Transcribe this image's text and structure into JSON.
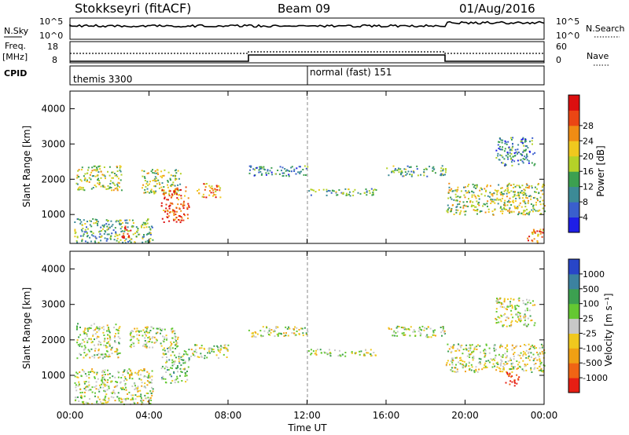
{
  "header": {
    "title": "Stokkseyri (fitACF)",
    "beam": "Beam 09",
    "date": "01/Aug/2016"
  },
  "top_panels": {
    "nsky_label": "N.Sky",
    "nsky_ticks": [
      "10^5",
      "10^0"
    ],
    "nsearch_label": "N.Search",
    "freq_label": "Freq.",
    "freq_unit": "[MHz]",
    "freq_ticks": [
      "18",
      "8"
    ],
    "nave_label": "Nave",
    "nave_ticks": [
      "60",
      "0"
    ],
    "cpid_label": "CPID",
    "cpid_modes": [
      "themis 3300",
      "normal (fast) 151"
    ]
  },
  "chart_data": [
    {
      "type": "heatmap",
      "name": "power-panel",
      "ylabel": "Slant Range [km]",
      "yticks": [
        "1000",
        "2000",
        "3000",
        "4000"
      ],
      "ylim": [
        180,
        4500
      ],
      "xlim": [
        0,
        24
      ],
      "colorbar": {
        "label": "Power [dB]",
        "ticks": [
          "4",
          "8",
          "12",
          "16",
          "20",
          "24",
          "28"
        ],
        "colors": [
          "#1e1ee6",
          "#3a5fcd",
          "#3c8a96",
          "#3ca050",
          "#b4d228",
          "#f0c81e",
          "#f08c14",
          "#eb4614",
          "#dc0f0f"
        ]
      },
      "echo_regions": [
        {
          "t0": 0.2,
          "t1": 4.2,
          "r0": 200,
          "r1": 900,
          "level": 3
        },
        {
          "t0": 2.6,
          "t1": 3.1,
          "r0": 300,
          "r1": 700,
          "level": 8
        },
        {
          "t0": 0.3,
          "t1": 2.6,
          "r0": 1700,
          "r1": 2400,
          "level": 4
        },
        {
          "t0": 3.6,
          "t1": 5.6,
          "r0": 1600,
          "r1": 2300,
          "level": 4
        },
        {
          "t0": 4.6,
          "t1": 6.0,
          "r0": 800,
          "r1": 1800,
          "level": 7
        },
        {
          "t0": 6.4,
          "t1": 7.6,
          "r0": 1500,
          "r1": 1900,
          "level": 6
        },
        {
          "t0": 9.0,
          "t1": 12.0,
          "r0": 2100,
          "r1": 2400,
          "level": 2
        },
        {
          "t0": 12.0,
          "t1": 15.5,
          "r0": 1550,
          "r1": 1750,
          "level": 3
        },
        {
          "t0": 16.0,
          "t1": 19.0,
          "r0": 2100,
          "r1": 2400,
          "level": 3
        },
        {
          "t0": 19.0,
          "t1": 24.0,
          "r0": 1000,
          "r1": 1900,
          "level": 4
        },
        {
          "t0": 21.5,
          "t1": 23.5,
          "r0": 2400,
          "r1": 3200,
          "level": 2
        },
        {
          "t0": 23.0,
          "t1": 24.0,
          "r0": 200,
          "r1": 600,
          "level": 6
        }
      ]
    },
    {
      "type": "heatmap",
      "name": "velocity-panel",
      "ylabel": "Slant Range [km]",
      "yticks": [
        "1000",
        "2000",
        "3000",
        "4000"
      ],
      "ylim": [
        180,
        4500
      ],
      "xlim": [
        0,
        24
      ],
      "xticks": [
        "00:00",
        "04:00",
        "08:00",
        "12:00",
        "16:00",
        "20:00",
        "00:00"
      ],
      "xlabel": "Time UT",
      "colorbar": {
        "label": "Velocity [m s⁻¹]",
        "ticks": [
          "1000",
          "500",
          "100",
          "25",
          "-25",
          "-100",
          "-500",
          "-1000"
        ],
        "colors": [
          "#2846c8",
          "#3c82a0",
          "#3ca050",
          "#64c832",
          "#c8c8c8",
          "#f0c81e",
          "#f0a014",
          "#f06414",
          "#e61e14"
        ]
      },
      "echo_regions": [
        {
          "t0": 0.2,
          "t1": 4.2,
          "r0": 200,
          "r1": 1200,
          "level": 4
        },
        {
          "t0": 0.3,
          "t1": 2.5,
          "r0": 1500,
          "r1": 2500,
          "level": 4
        },
        {
          "t0": 3.0,
          "t1": 5.5,
          "r0": 1800,
          "r1": 2400,
          "level": 4
        },
        {
          "t0": 4.6,
          "t1": 6.0,
          "r0": 800,
          "r1": 1800,
          "level": 3
        },
        {
          "t0": 6.0,
          "t1": 8.0,
          "r0": 1500,
          "r1": 1900,
          "level": 4
        },
        {
          "t0": 9.0,
          "t1": 12.0,
          "r0": 2100,
          "r1": 2400,
          "level": 4
        },
        {
          "t0": 12.0,
          "t1": 15.5,
          "r0": 1550,
          "r1": 1750,
          "level": 4
        },
        {
          "t0": 16.0,
          "t1": 19.0,
          "r0": 2100,
          "r1": 2400,
          "level": 4
        },
        {
          "t0": 19.0,
          "t1": 24.0,
          "r0": 1100,
          "r1": 1900,
          "level": 4
        },
        {
          "t0": 22.0,
          "t1": 22.7,
          "r0": 700,
          "r1": 1100,
          "level": 8
        },
        {
          "t0": 21.5,
          "t1": 23.5,
          "r0": 2400,
          "r1": 3200,
          "level": 4
        }
      ]
    }
  ]
}
